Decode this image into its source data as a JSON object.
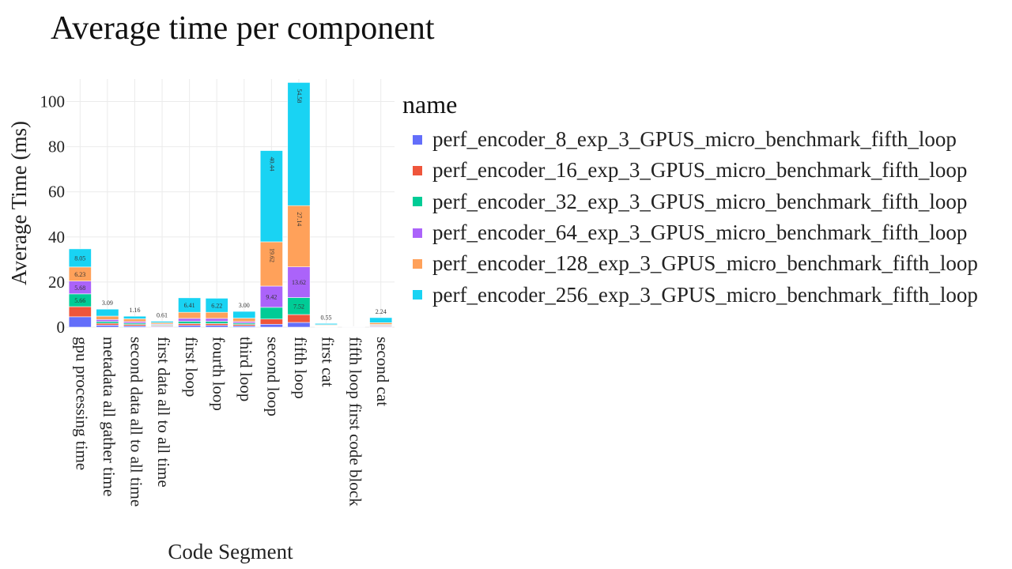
{
  "chart_data": {
    "type": "bar",
    "stacked": true,
    "title": "Average time per component",
    "xlabel": "Code Segment",
    "ylabel": "Average Time (ms)",
    "ylim": [
      0,
      110
    ],
    "yticks": [
      0,
      20,
      40,
      60,
      80,
      100
    ],
    "grid": true,
    "legend_title": "name",
    "legend_position": "right",
    "categories": [
      "gpu processing time",
      "metadata all gather time",
      "second data all to all time",
      "first data all to all time",
      "first loop",
      "fourth loop",
      "third loop",
      "second loop",
      "fifth loop",
      "first cat",
      "fifth loop first code block",
      "second cat"
    ],
    "series": [
      {
        "name": "perf_encoder_8_exp_3_GPUS_micro_benchmark_fifth_loop",
        "color": "#636efa",
        "values": [
          4.6,
          0.9,
          0.6,
          0.35,
          0.8,
          0.8,
          0.6,
          1.3,
          2.1,
          0.2,
          0.05,
          0.3
        ],
        "labels": [
          "",
          "",
          "",
          "",
          "",
          "",
          "",
          "",
          "",
          "",
          "",
          ""
        ]
      },
      {
        "name": "perf_encoder_16_exp_3_GPUS_micro_benchmark_fifth_loop",
        "color": "#ef553b",
        "values": [
          4.5,
          0.8,
          0.6,
          0.35,
          0.8,
          0.8,
          0.6,
          2.3,
          3.5,
          0.2,
          0.05,
          0.3
        ],
        "labels": [
          "",
          "",
          "",
          "",
          "",
          "",
          "",
          "",
          "",
          "",
          "",
          ""
        ]
      },
      {
        "name": "perf_encoder_32_exp_3_GPUS_micro_benchmark_fifth_loop",
        "color": "#00cc96",
        "values": [
          5.66,
          0.8,
          0.6,
          0.35,
          1.0,
          1.0,
          0.6,
          5.2,
          7.52,
          0.2,
          0.05,
          0.3
        ],
        "labels": [
          "5.66",
          "",
          "",
          "",
          "",
          "",
          "",
          "",
          "7.52",
          "",
          "",
          ""
        ]
      },
      {
        "name": "perf_encoder_64_exp_3_GPUS_micro_benchmark_fifth_loop",
        "color": "#ab63fa",
        "values": [
          5.68,
          0.9,
          0.7,
          0.35,
          1.3,
          1.3,
          0.7,
          9.42,
          13.62,
          0.2,
          0.05,
          0.3
        ],
        "labels": [
          "5.68",
          "",
          "",
          "",
          "",
          "",
          "",
          "9.42",
          "13.62",
          "",
          "",
          ""
        ]
      },
      {
        "name": "perf_encoder_128_exp_3_GPUS_micro_benchmark_fifth_loop",
        "color": "#ffa15a",
        "values": [
          6.23,
          1.5,
          1.2,
          0.6,
          2.7,
          2.7,
          1.5,
          19.62,
          27.14,
          0.3,
          0.05,
          0.8
        ],
        "labels": [
          "6.23",
          "",
          "",
          "",
          "",
          "",
          "",
          "19.62",
          "27.14",
          "",
          "",
          ""
        ]
      },
      {
        "name": "perf_encoder_256_exp_3_GPUS_micro_benchmark_fifth_loop",
        "color": "#19d3f3",
        "values": [
          8.05,
          3.09,
          1.16,
          0.61,
          6.41,
          6.22,
          3.0,
          40.44,
          54.58,
          0.55,
          0.05,
          2.24
        ],
        "labels": [
          "8.05",
          "3.09",
          "1.16",
          "0.61",
          "6.41",
          "6.22",
          "3.00",
          "40.44",
          "54.58",
          "0.55",
          "",
          "2.24"
        ]
      }
    ]
  }
}
